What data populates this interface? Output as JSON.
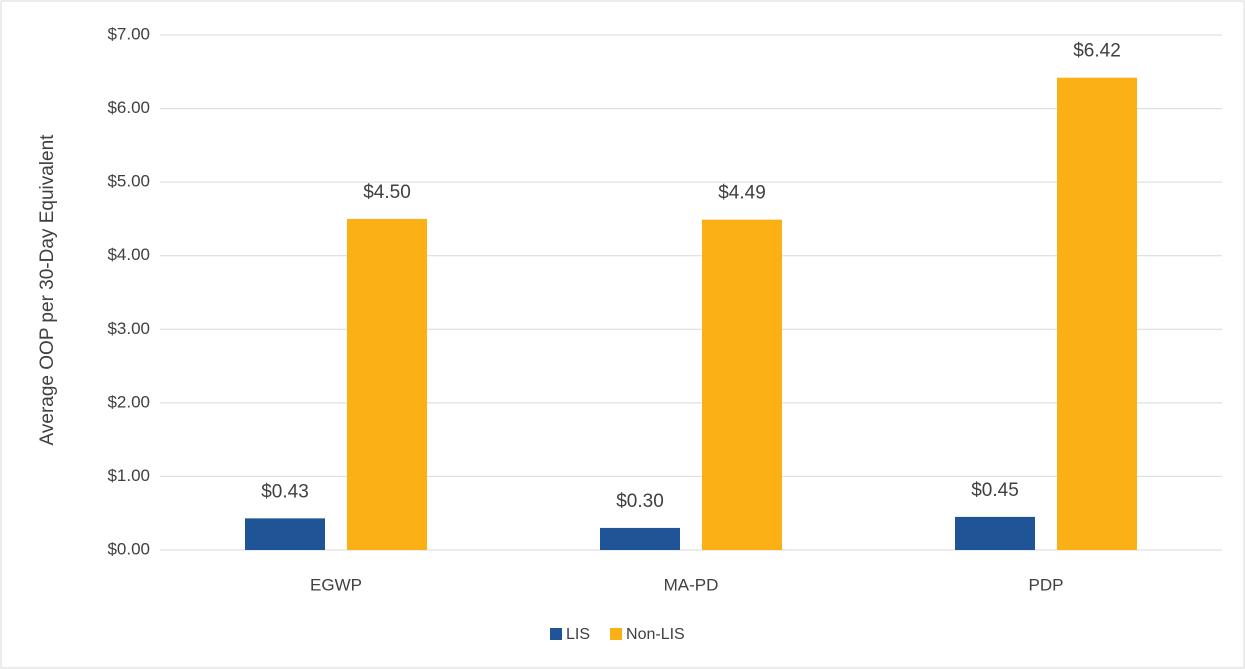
{
  "chart_data": {
    "type": "bar",
    "y_label": "Average OOP per 30-Day Equivalent",
    "categories": [
      "EGWP",
      "MA-PD",
      "PDP"
    ],
    "series": [
      {
        "name": "LIS",
        "color": "#1f5596",
        "values": [
          0.43,
          0.3,
          0.45
        ],
        "value_labels": [
          "$0.43",
          "$0.30",
          "$0.45"
        ]
      },
      {
        "name": "Non-LIS",
        "color": "#fbb016",
        "values": [
          4.5,
          4.49,
          6.42
        ],
        "value_labels": [
          "$4.50",
          "$4.49",
          "$6.42"
        ]
      }
    ],
    "ylim": [
      0,
      7
    ],
    "yticks": [
      {
        "value": 0,
        "label": "$0.00"
      },
      {
        "value": 1,
        "label": "$1.00"
      },
      {
        "value": 2,
        "label": "$2.00"
      },
      {
        "value": 3,
        "label": "$3.00"
      },
      {
        "value": 4,
        "label": "$4.00"
      },
      {
        "value": 5,
        "label": "$5.00"
      },
      {
        "value": 6,
        "label": "$6.00"
      },
      {
        "value": 7,
        "label": "$7.00"
      }
    ],
    "grid": true,
    "legend": "bottom"
  }
}
